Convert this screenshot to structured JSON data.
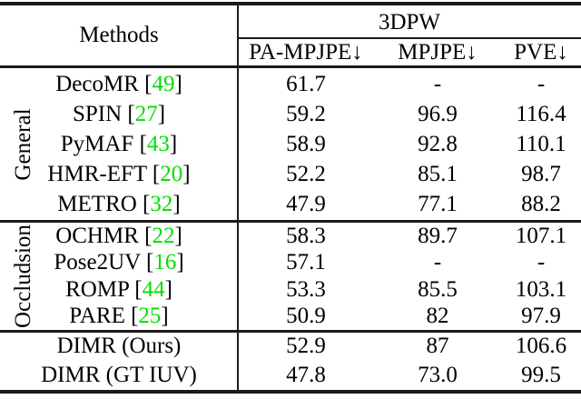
{
  "colors": {
    "reference_green": "#00dd00",
    "rule_black": "#1a1a1a",
    "text": "#000000",
    "background": "#ffffff"
  },
  "header": {
    "methods": "Methods",
    "dataset": "3DPW",
    "metrics": [
      "PA-MPJPE↓",
      "MPJPE↓",
      "PVE↓"
    ]
  },
  "groups": [
    {
      "label": "General",
      "rows": [
        {
          "pre": "DecoMR [",
          "ref": "49",
          "post": "]",
          "pa": "61.7",
          "mpjpe": "-",
          "pve": "-"
        },
        {
          "pre": "SPIN [",
          "ref": "27",
          "post": "]",
          "pa": "59.2",
          "mpjpe": "96.9",
          "pve": "116.4"
        },
        {
          "pre": "PyMAF [",
          "ref": "43",
          "post": "]",
          "pa": "58.9",
          "mpjpe": "92.8",
          "pve": "110.1"
        },
        {
          "pre": "HMR-EFT [",
          "ref": "20",
          "post": "]",
          "pa": "52.2",
          "mpjpe": "85.1",
          "pve": "98.7"
        },
        {
          "pre": "METRO [",
          "ref": "32",
          "post": "]",
          "pa": "47.9",
          "mpjpe": "77.1",
          "pve": "88.2"
        }
      ]
    },
    {
      "label": "Occludsion",
      "rows": [
        {
          "pre": "OCHMR [",
          "ref": "22",
          "post": "]",
          "pa": "58.3",
          "mpjpe": "89.7",
          "pve": "107.1"
        },
        {
          "pre": "Pose2UV [",
          "ref": "16",
          "post": "]",
          "pa": "57.1",
          "mpjpe": "-",
          "pve": "-"
        },
        {
          "pre": "ROMP [",
          "ref": "44",
          "post": "]",
          "pa": "53.3",
          "mpjpe": "85.5",
          "pve": "103.1"
        },
        {
          "pre": "PARE [",
          "ref": "25",
          "post": "]",
          "pa": "50.9",
          "mpjpe": "82",
          "pve": "97.9"
        }
      ]
    },
    {
      "label": "",
      "rows": [
        {
          "pre": "DIMR (Ours)",
          "ref": "",
          "post": "",
          "pa": "52.9",
          "mpjpe": "87",
          "pve": "106.6"
        },
        {
          "pre": "DIMR (GT IUV)",
          "ref": "",
          "post": "",
          "pa": "47.8",
          "mpjpe": "73.0",
          "pve": "99.5"
        }
      ]
    }
  ]
}
